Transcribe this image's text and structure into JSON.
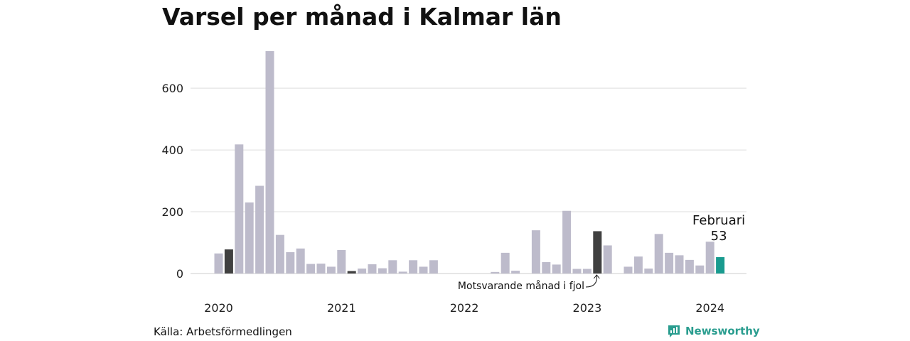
{
  "title": "Varsel per månad i Kalmar län",
  "source": "Källa: Arbetsförmedlingen",
  "brand": "Newsworthy",
  "annotation": "Motsvarande månad i fjol",
  "highlight": {
    "month_label": "Februari",
    "value_label": "53"
  },
  "colors": {
    "bar": "#bdbbcb",
    "comparison": "#404040",
    "current": "#199b8f",
    "grid": "#dddddd",
    "brand": "#2a9d8f"
  },
  "icons": {
    "brand": "bar-chart-speech-bubble-icon"
  },
  "chart_data": {
    "type": "bar",
    "title": "Varsel per månad i Kalmar län",
    "xlabel": "",
    "ylabel": "",
    "ylim": [
      0,
      720
    ],
    "yticks": [
      0,
      200,
      400,
      600
    ],
    "xticks": [
      "2020",
      "2021",
      "2022",
      "2023",
      "2024"
    ],
    "grid": true,
    "legend": "none",
    "categories": [
      "2020-01",
      "2020-02",
      "2020-03",
      "2020-04",
      "2020-05",
      "2020-06",
      "2020-07",
      "2020-08",
      "2020-09",
      "2020-10",
      "2020-11",
      "2020-12",
      "2021-01",
      "2021-02",
      "2021-03",
      "2021-04",
      "2021-05",
      "2021-06",
      "2021-07",
      "2021-08",
      "2021-09",
      "2021-10",
      "2021-11",
      "2021-12",
      "2022-01",
      "2022-02",
      "2022-03",
      "2022-04",
      "2022-05",
      "2022-06",
      "2022-07",
      "2022-08",
      "2022-09",
      "2022-10",
      "2022-11",
      "2022-12",
      "2023-01",
      "2023-02",
      "2023-03",
      "2023-04",
      "2023-05",
      "2023-06",
      "2023-07",
      "2023-08",
      "2023-09",
      "2023-10",
      "2023-11",
      "2023-12",
      "2024-01",
      "2024-02"
    ],
    "values": [
      65,
      78,
      418,
      230,
      284,
      720,
      125,
      69,
      81,
      31,
      32,
      22,
      76,
      8,
      16,
      30,
      17,
      43,
      6,
      43,
      22,
      43,
      0,
      0,
      0,
      0,
      0,
      5,
      67,
      9,
      0,
      140,
      37,
      29,
      203,
      15,
      15,
      137,
      91,
      0,
      22,
      55,
      16,
      128,
      67,
      59,
      44,
      26,
      103,
      53
    ],
    "highlighted_current": "2024-02",
    "highlighted_comparison": [
      "2020-02",
      "2021-02",
      "2023-02"
    ]
  }
}
